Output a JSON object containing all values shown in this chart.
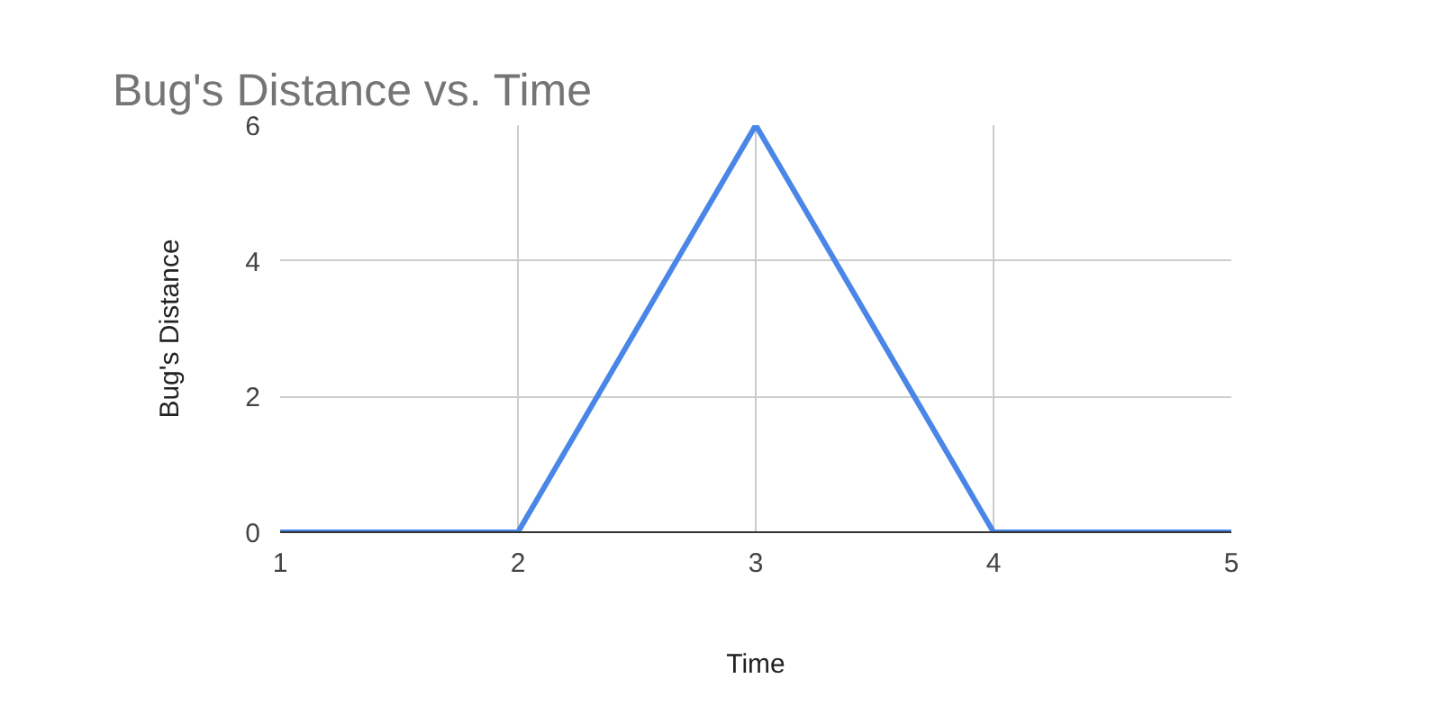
{
  "chart_data": {
    "type": "line",
    "title": "Bug's Distance vs. Time",
    "xlabel": "Time",
    "ylabel": "Bug's Distance",
    "x": [
      1,
      2,
      3,
      4,
      5
    ],
    "series": [
      {
        "color": "#4a86e8",
        "values": [
          0,
          0,
          6,
          0,
          0
        ]
      }
    ],
    "xlim": [
      1,
      5
    ],
    "xticks": [
      1,
      2,
      3,
      4,
      5
    ],
    "ylim": [
      0,
      6
    ],
    "yticks": [
      0,
      2,
      4,
      6
    ],
    "grid": true,
    "marker": "none",
    "line_style": "solid"
  }
}
